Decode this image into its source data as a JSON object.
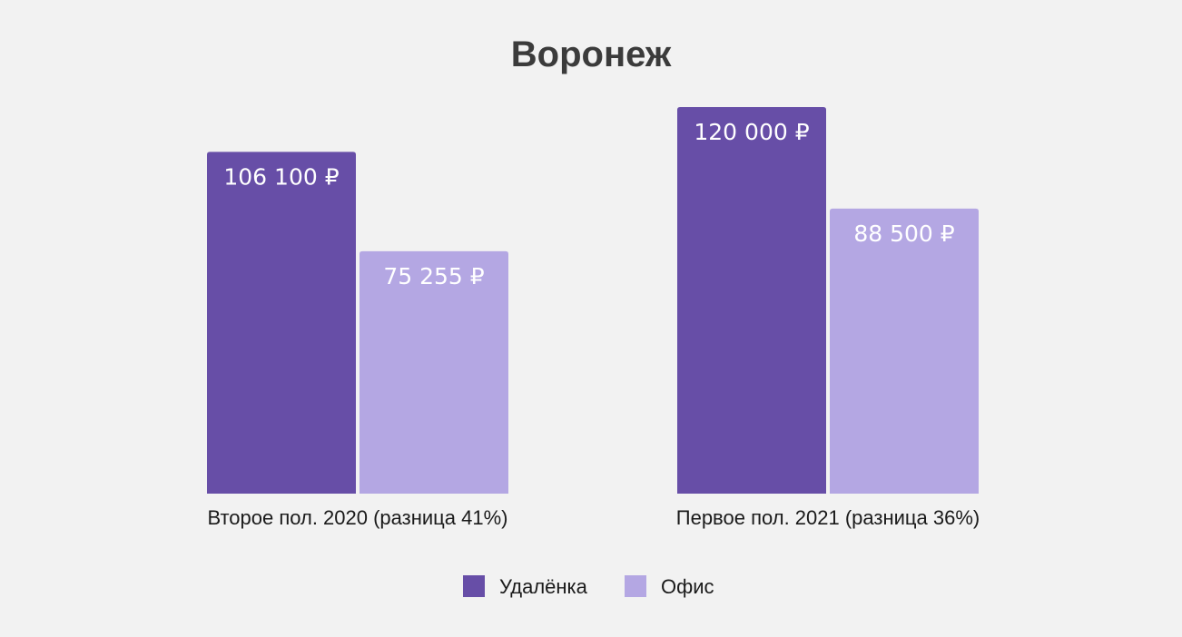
{
  "chart_data": {
    "type": "bar",
    "title": "Воронеж",
    "categories": [
      "Второе пол. 2020 (разница 41%)",
      "Первое пол. 2021 (разница 36%)"
    ],
    "series": [
      {
        "name": "Удалёнка",
        "color": "#674ea7",
        "values": [
          106100,
          120000
        ],
        "labels": [
          "106 100 ₽",
          "120 000 ₽"
        ]
      },
      {
        "name": "Офис",
        "color": "#b4a7e3",
        "values": [
          75255,
          88500
        ],
        "labels": [
          "75 255 ₽",
          "88 500 ₽"
        ]
      }
    ],
    "ylim": [
      0,
      120000
    ],
    "grid": false,
    "legend_position": "bottom"
  }
}
